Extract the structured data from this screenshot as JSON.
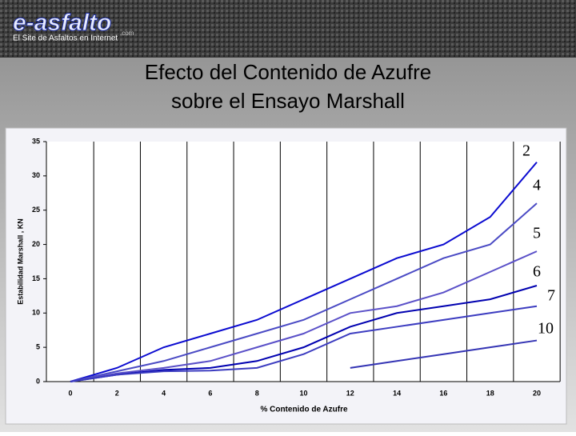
{
  "header": {
    "logo": "e-asfalto",
    "logo_suffix": ".com",
    "tagline": "El Site de Asfaltos en Internet"
  },
  "chart_data": {
    "type": "line",
    "title": [
      "Efecto del Contenido de Azufre",
      "sobre el Ensayo Marshall"
    ],
    "x_label": "% Contenido de Azufre",
    "y_label": "Estabilidad Marshall , KN",
    "categories": [
      "0",
      "2",
      "4",
      "6",
      "8",
      "10",
      "12",
      "14",
      "16",
      "18",
      "20"
    ],
    "ylim": [
      0,
      35
    ],
    "yticks": [
      0,
      5,
      10,
      15,
      20,
      25,
      30,
      35
    ],
    "grid": true,
    "series": [
      {
        "name": "2",
        "color": "#0a0ad0",
        "values": [
          0,
          2,
          5,
          7,
          9,
          12,
          15,
          18,
          20,
          24,
          32
        ]
      },
      {
        "name": "4",
        "color": "#4a4ac4",
        "values": [
          0,
          1.5,
          3,
          5,
          7,
          9,
          12,
          15,
          18,
          20,
          26
        ]
      },
      {
        "name": "5",
        "color": "#5a50c8",
        "values": [
          0,
          1.2,
          2,
          3,
          5,
          7,
          10,
          11,
          13,
          16,
          19
        ]
      },
      {
        "name": "6",
        "color": "#0000b0",
        "values": [
          0,
          1,
          1.7,
          2,
          3,
          5,
          8,
          10,
          11,
          12,
          14
        ]
      },
      {
        "name": "7",
        "color": "#3c3cc0",
        "values": [
          0,
          1,
          1.5,
          1.6,
          2,
          4,
          7,
          8,
          9,
          10,
          11
        ]
      },
      {
        "name": "10",
        "color": "#3434b4",
        "values": [
          null,
          null,
          null,
          null,
          null,
          null,
          2,
          3,
          4,
          5,
          6
        ]
      }
    ]
  }
}
